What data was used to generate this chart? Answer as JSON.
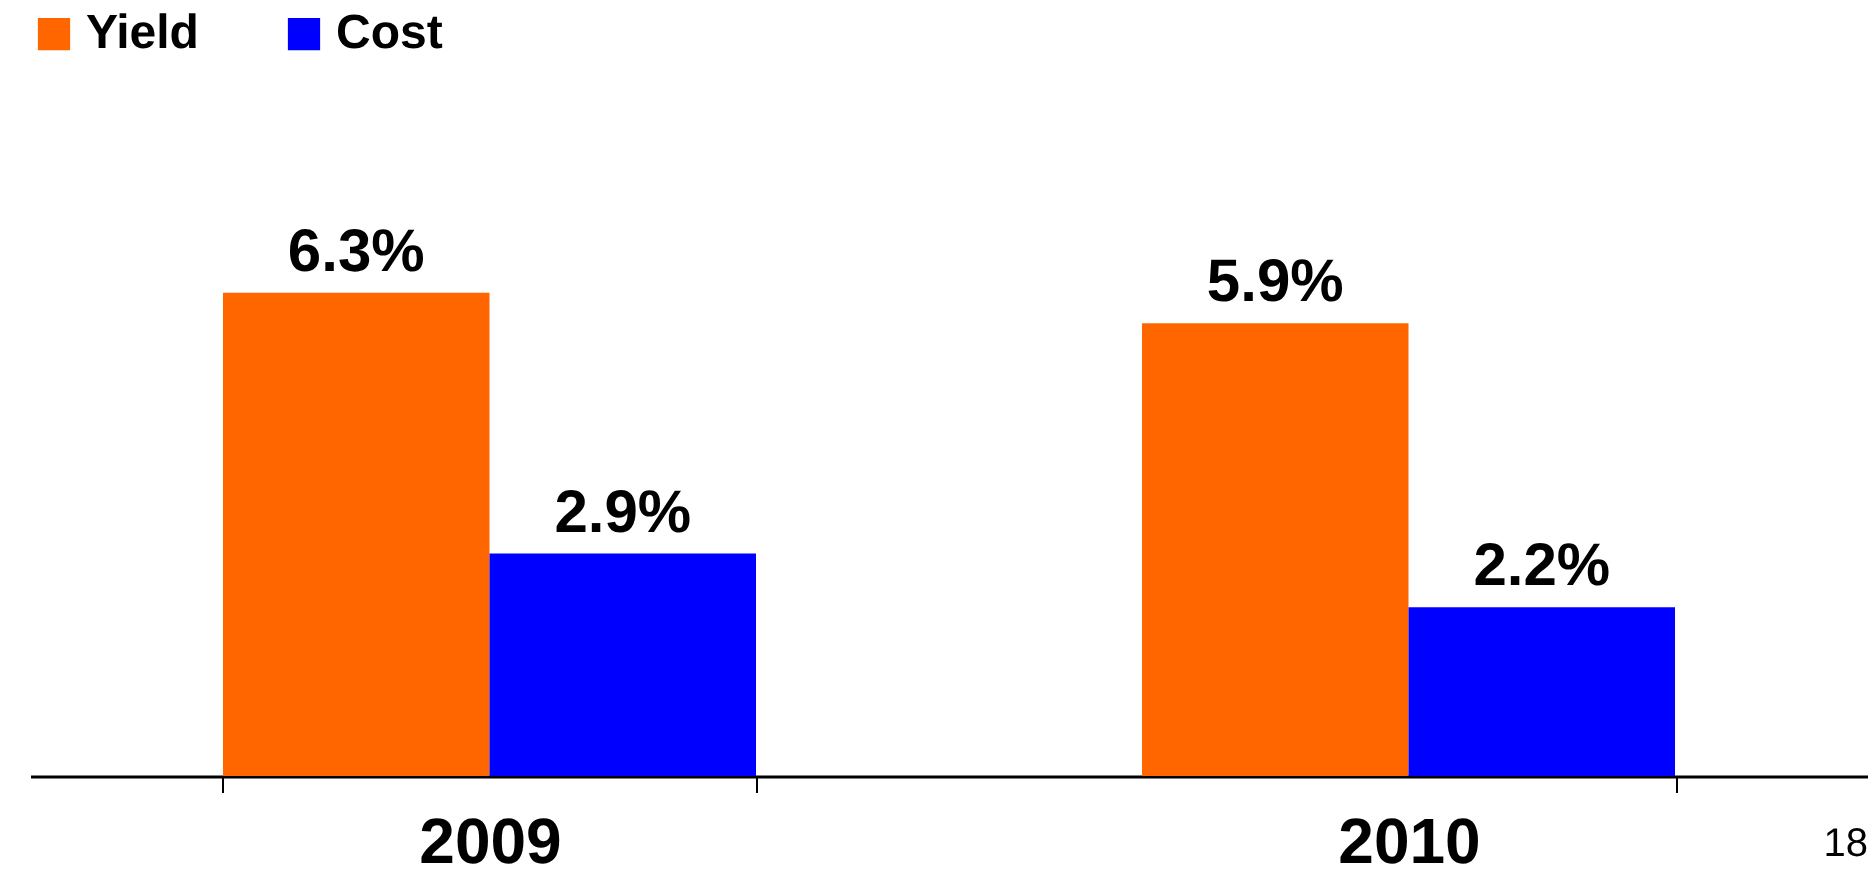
{
  "chart_data": {
    "type": "bar",
    "categories": [
      "2009",
      "2010"
    ],
    "series": [
      {
        "name": "Yield",
        "color": "#ff6600",
        "values": [
          6.3,
          5.9
        ],
        "value_labels": [
          "6.3%",
          "5.9%"
        ]
      },
      {
        "name": "Cost",
        "color": "#0000ff",
        "values": [
          2.9,
          2.2
        ],
        "value_labels": [
          "2.9%",
          "2.2%"
        ]
      }
    ],
    "legend": "top",
    "annotations": [
      "18"
    ]
  }
}
